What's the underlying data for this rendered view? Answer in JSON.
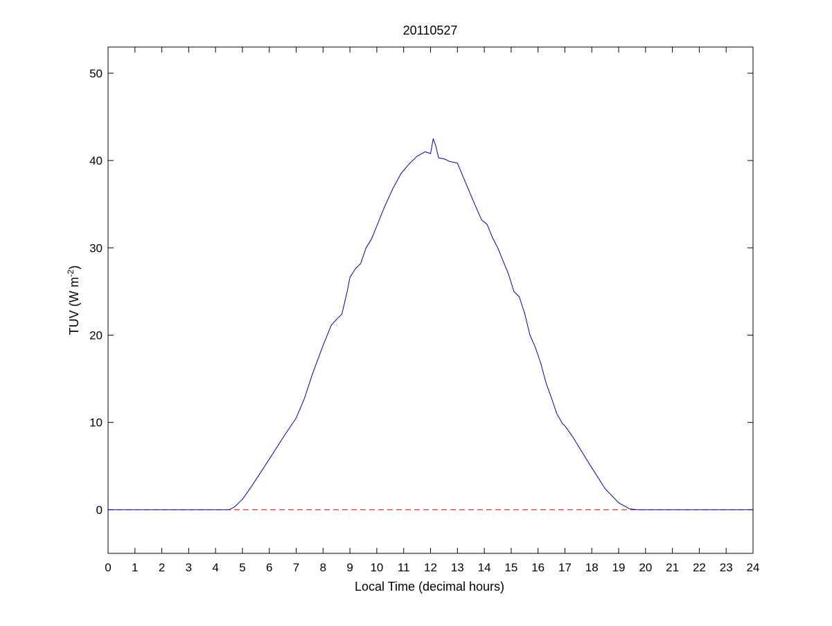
{
  "chart_data": {
    "type": "line",
    "title": "20110527",
    "xlabel": "Local Time (decimal hours)",
    "ylabel_main": "TUV (W m",
    "ylabel_sup": "-2",
    "ylabel_close": ")",
    "xlim": [
      0,
      24
    ],
    "ylim": [
      -5,
      53
    ],
    "xticks": [
      0,
      1,
      2,
      3,
      4,
      5,
      6,
      7,
      8,
      9,
      10,
      11,
      12,
      13,
      14,
      15,
      16,
      17,
      18,
      19,
      20,
      21,
      22,
      23,
      24
    ],
    "yticks": [
      0,
      10,
      20,
      30,
      40,
      50
    ],
    "grid": false,
    "legend": "none",
    "series": [
      {
        "color": "#0000aa",
        "style": "solid",
        "x": [
          0,
          4.5,
          4.7,
          5.0,
          5.3,
          5.6,
          6.0,
          6.5,
          7.0,
          7.3,
          7.6,
          8.0,
          8.3,
          8.5,
          8.7,
          8.9,
          9.0,
          9.2,
          9.4,
          9.6,
          9.8,
          10.0,
          10.3,
          10.6,
          10.9,
          11.2,
          11.5,
          11.8,
          12.0,
          12.1,
          12.2,
          12.3,
          12.5,
          12.7,
          13.0,
          13.3,
          13.6,
          13.9,
          14.1,
          14.3,
          14.5,
          14.7,
          14.9,
          15.1,
          15.3,
          15.5,
          15.7,
          15.9,
          16.1,
          16.3,
          16.5,
          16.7,
          16.9,
          17.0,
          17.3,
          17.6,
          18.0,
          18.5,
          19.0,
          19.4,
          19.7,
          20.0,
          24
        ],
        "y": [
          0,
          0,
          0.3,
          1.2,
          2.5,
          3.9,
          5.8,
          8.2,
          10.5,
          12.7,
          15.5,
          18.8,
          21.1,
          21.8,
          22.4,
          25.0,
          26.6,
          27.6,
          28.2,
          30.0,
          31.0,
          32.5,
          34.8,
          36.8,
          38.5,
          39.6,
          40.5,
          41.0,
          40.8,
          42.5,
          41.6,
          40.3,
          40.2,
          39.9,
          39.7,
          37.5,
          35.3,
          33.2,
          32.7,
          31.2,
          30.0,
          28.5,
          27.0,
          25.0,
          24.4,
          22.5,
          20.0,
          18.6,
          16.8,
          14.5,
          12.8,
          11.0,
          9.9,
          9.6,
          8.3,
          6.8,
          4.8,
          2.4,
          0.8,
          0.1,
          0,
          0,
          0
        ]
      },
      {
        "color": "#cc0000",
        "style": "dashed",
        "x": [
          0,
          24
        ],
        "y": [
          0,
          0
        ]
      }
    ]
  }
}
